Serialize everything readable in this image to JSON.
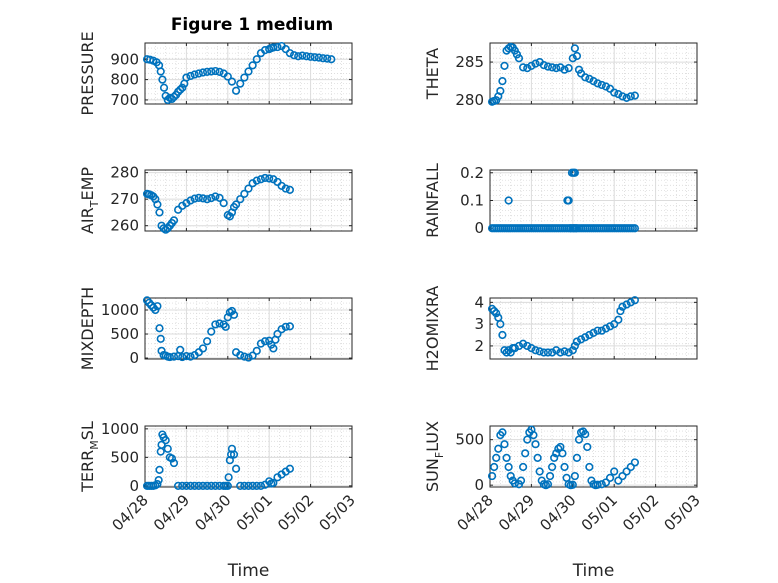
{
  "figure": {
    "title": "Figure 1 medium"
  },
  "chart_data": [
    {
      "type": "scatter",
      "ylabel": "PRESSURE",
      "ylim": [
        680,
        980
      ],
      "yticks": [
        700,
        800,
        900
      ],
      "xlim": [
        0,
        5
      ],
      "grid": true,
      "x": [
        0.05,
        0.12,
        0.2,
        0.28,
        0.34,
        0.38,
        0.42,
        0.46,
        0.5,
        0.55,
        0.6,
        0.65,
        0.7,
        0.75,
        0.8,
        0.85,
        0.9,
        0.95,
        1.0,
        1.1,
        1.2,
        1.3,
        1.4,
        1.5,
        1.6,
        1.7,
        1.8,
        1.9,
        2.0,
        2.1,
        2.2,
        2.3,
        2.4,
        2.5,
        2.6,
        2.7,
        2.8,
        2.9,
        3.0,
        3.05,
        3.1,
        3.2,
        3.3,
        3.4,
        3.5,
        3.6,
        3.7,
        3.8,
        3.9,
        4.0,
        4.1,
        4.2,
        4.3,
        4.4,
        4.5
      ],
      "y": [
        900,
        898,
        893,
        885,
        870,
        840,
        800,
        760,
        720,
        700,
        710,
        705,
        715,
        725,
        740,
        750,
        760,
        780,
        810,
        818,
        825,
        830,
        835,
        838,
        840,
        842,
        838,
        830,
        815,
        790,
        745,
        780,
        810,
        840,
        870,
        900,
        930,
        945,
        950,
        955,
        958,
        960,
        965,
        950,
        930,
        920,
        915,
        918,
        915,
        912,
        910,
        908,
        905,
        903,
        900
      ]
    },
    {
      "type": "scatter",
      "ylabel": "THETA",
      "ylim": [
        279.5,
        287.5
      ],
      "yticks": [
        280,
        285
      ],
      "xlim": [
        0,
        5
      ],
      "grid": true,
      "x": [
        0.05,
        0.1,
        0.15,
        0.2,
        0.25,
        0.3,
        0.35,
        0.4,
        0.45,
        0.5,
        0.55,
        0.6,
        0.65,
        0.7,
        0.8,
        0.9,
        1.0,
        1.1,
        1.2,
        1.3,
        1.4,
        1.5,
        1.6,
        1.7,
        1.8,
        1.9,
        2.0,
        2.05,
        2.1,
        2.15,
        2.2,
        2.3,
        2.4,
        2.5,
        2.6,
        2.7,
        2.8,
        2.9,
        3.0,
        3.1,
        3.2,
        3.3,
        3.4,
        3.5
      ],
      "y": [
        279.8,
        279.9,
        280,
        280.5,
        281.2,
        282.5,
        284.5,
        286.5,
        286.8,
        287,
        286.9,
        286.5,
        286,
        285.5,
        284.3,
        284.2,
        284.5,
        284.8,
        285,
        284.6,
        284.4,
        284.3,
        284.2,
        284.3,
        284,
        284.2,
        285.5,
        286.8,
        285.8,
        284,
        283.5,
        283,
        282.8,
        282.5,
        282.2,
        282,
        281.8,
        281.5,
        281,
        280.8,
        280.5,
        280.3,
        280.5,
        280.6
      ]
    },
    {
      "type": "scatter",
      "ylabel": "AIR_TEMP",
      "ylim": [
        258,
        281
      ],
      "yticks": [
        260,
        270,
        280
      ],
      "xlim": [
        0,
        5
      ],
      "grid": true,
      "x": [
        0.05,
        0.1,
        0.15,
        0.2,
        0.25,
        0.3,
        0.35,
        0.4,
        0.45,
        0.5,
        0.55,
        0.6,
        0.65,
        0.7,
        0.8,
        0.9,
        1.0,
        1.1,
        1.2,
        1.3,
        1.4,
        1.5,
        1.6,
        1.7,
        1.8,
        1.9,
        2.0,
        2.05,
        2.1,
        2.15,
        2.2,
        2.3,
        2.4,
        2.5,
        2.6,
        2.7,
        2.8,
        2.9,
        3.0,
        3.1,
        3.2,
        3.3,
        3.4,
        3.5
      ],
      "y": [
        272,
        271.8,
        271.5,
        271,
        270,
        268,
        265,
        260,
        259,
        258.5,
        259,
        260,
        261,
        262,
        266,
        267.5,
        268.5,
        269.5,
        270.2,
        270.5,
        270.3,
        270,
        270.4,
        271,
        270.5,
        268.5,
        264,
        263.5,
        265,
        267,
        268,
        270,
        272,
        274,
        276,
        277,
        277.5,
        278,
        277.8,
        277.5,
        276.5,
        275,
        274,
        273.5
      ]
    },
    {
      "type": "scatter",
      "ylabel": "RAINFALL",
      "ylim": [
        -0.01,
        0.21
      ],
      "yticks": [
        0,
        0.1,
        0.2
      ],
      "xlim": [
        0,
        5
      ],
      "grid": true,
      "x": [
        0.05,
        0.1,
        0.15,
        0.2,
        0.25,
        0.3,
        0.35,
        0.4,
        0.45,
        0.5,
        0.55,
        0.6,
        0.65,
        0.7,
        0.75,
        0.8,
        0.85,
        0.9,
        0.95,
        1.0,
        1.05,
        1.1,
        1.15,
        1.2,
        1.25,
        1.3,
        1.35,
        1.4,
        1.45,
        1.5,
        1.55,
        1.6,
        1.65,
        1.7,
        1.75,
        1.8,
        1.85,
        1.9,
        1.95,
        2.0,
        2.02,
        2.05,
        2.08,
        2.1,
        2.15,
        2.2,
        2.25,
        2.3,
        2.35,
        2.4,
        2.45,
        2.5,
        2.55,
        2.6,
        2.65,
        2.7,
        2.75,
        2.8,
        2.85,
        2.9,
        2.95,
        3.0,
        3.05,
        3.1,
        3.15,
        3.2,
        3.25,
        3.3,
        3.35,
        3.4,
        3.45,
        3.5,
        0.45,
        1.87,
        1.9,
        1.95,
        1.98,
        2.02,
        2.05
      ],
      "y": [
        0,
        0,
        0,
        0,
        0,
        0,
        0,
        0,
        0,
        0,
        0,
        0,
        0,
        0,
        0,
        0,
        0,
        0,
        0,
        0,
        0,
        0,
        0,
        0,
        0,
        0,
        0,
        0,
        0,
        0,
        0,
        0,
        0,
        0,
        0,
        0,
        0,
        0,
        0,
        0,
        0,
        0,
        0,
        0,
        0,
        0,
        0,
        0,
        0,
        0,
        0,
        0,
        0,
        0,
        0,
        0,
        0,
        0,
        0,
        0,
        0,
        0,
        0,
        0,
        0,
        0,
        0,
        0,
        0,
        0,
        0,
        0,
        0.1,
        0.1,
        0.1,
        0,
        0.2,
        0.2,
        0.2
      ]
    },
    {
      "type": "scatter",
      "ylabel": "MIXDEPTH",
      "ylim": [
        -20,
        1250
      ],
      "yticks": [
        0,
        500,
        1000
      ],
      "xlim": [
        0,
        5
      ],
      "grid": true,
      "x": [
        0.05,
        0.1,
        0.15,
        0.2,
        0.25,
        0.3,
        0.35,
        0.38,
        0.4,
        0.45,
        0.5,
        0.55,
        0.6,
        0.7,
        0.8,
        0.85,
        0.9,
        1.0,
        1.1,
        1.2,
        1.3,
        1.4,
        1.5,
        1.6,
        1.7,
        1.8,
        1.9,
        1.95,
        2.0,
        2.05,
        2.1,
        2.15,
        2.2,
        2.3,
        2.4,
        2.5,
        2.6,
        2.7,
        2.8,
        2.9,
        3.0,
        3.05,
        3.1,
        3.15,
        3.2,
        3.3,
        3.4,
        3.5
      ],
      "y": [
        1200,
        1150,
        1100,
        1050,
        1000,
        1080,
        620,
        400,
        150,
        60,
        50,
        30,
        20,
        30,
        40,
        170,
        20,
        40,
        30,
        60,
        120,
        200,
        350,
        550,
        700,
        720,
        700,
        650,
        850,
        950,
        980,
        900,
        120,
        60,
        30,
        10,
        50,
        150,
        300,
        350,
        360,
        280,
        200,
        380,
        500,
        600,
        650,
        660
      ]
    },
    {
      "type": "scatter",
      "ylabel": "H2OMIXRA",
      "ylim": [
        1.4,
        4.2
      ],
      "yticks": [
        2,
        3,
        4
      ],
      "xlim": [
        0,
        5
      ],
      "grid": true,
      "x": [
        0.05,
        0.1,
        0.15,
        0.2,
        0.25,
        0.3,
        0.35,
        0.4,
        0.45,
        0.5,
        0.55,
        0.6,
        0.7,
        0.8,
        0.9,
        1.0,
        1.1,
        1.2,
        1.3,
        1.4,
        1.5,
        1.6,
        1.7,
        1.8,
        1.9,
        2.0,
        2.05,
        2.1,
        2.2,
        2.3,
        2.4,
        2.5,
        2.6,
        2.7,
        2.8,
        2.9,
        3.0,
        3.1,
        3.15,
        3.2,
        3.3,
        3.4,
        3.5
      ],
      "y": [
        3.7,
        3.6,
        3.5,
        3.3,
        3.0,
        2.5,
        1.8,
        1.7,
        1.8,
        1.7,
        1.9,
        1.9,
        2.0,
        2.1,
        2.0,
        1.9,
        1.8,
        1.75,
        1.7,
        1.7,
        1.7,
        1.8,
        1.7,
        1.75,
        1.7,
        1.8,
        2.0,
        2.2,
        2.3,
        2.4,
        2.5,
        2.6,
        2.7,
        2.7,
        2.8,
        2.9,
        3.0,
        3.2,
        3.6,
        3.8,
        3.9,
        4.0,
        4.1
      ]
    },
    {
      "type": "scatter",
      "ylabel": "TERR_MSL",
      "ylim": [
        -20,
        1050
      ],
      "yticks": [
        0,
        500,
        1000
      ],
      "xlim": [
        0,
        5
      ],
      "grid": true,
      "xticklabels": [
        "04/28",
        "04/29",
        "04/30",
        "05/01",
        "05/02",
        "05/03"
      ],
      "xlabel": "Time",
      "x": [
        0.05,
        0.1,
        0.15,
        0.2,
        0.25,
        0.3,
        0.33,
        0.35,
        0.38,
        0.4,
        0.42,
        0.45,
        0.5,
        0.55,
        0.6,
        0.65,
        0.7,
        0.8,
        0.9,
        1.0,
        1.1,
        1.2,
        1.3,
        1.4,
        1.5,
        1.6,
        1.7,
        1.8,
        1.9,
        1.95,
        2.0,
        2.02,
        2.05,
        2.08,
        2.1,
        2.15,
        2.2,
        2.3,
        2.4,
        2.5,
        2.6,
        2.7,
        2.8,
        2.9,
        3.0,
        3.05,
        3.1,
        3.2,
        3.3,
        3.4,
        3.5
      ],
      "y": [
        0,
        0,
        0,
        0,
        10,
        30,
        100,
        280,
        600,
        720,
        900,
        850,
        800,
        650,
        500,
        480,
        400,
        0,
        0,
        0,
        0,
        0,
        0,
        0,
        0,
        0,
        0,
        0,
        0,
        0,
        0,
        150,
        450,
        550,
        650,
        550,
        300,
        0,
        0,
        0,
        0,
        0,
        0,
        20,
        80,
        40,
        50,
        150,
        200,
        250,
        300
      ]
    },
    {
      "type": "scatter",
      "ylabel": "SUN_FLUX",
      "ylim": [
        -20,
        650
      ],
      "yticks": [
        0,
        500
      ],
      "xlim": [
        0,
        5
      ],
      "grid": true,
      "xticklabels": [
        "04/28",
        "04/29",
        "04/30",
        "05/01",
        "05/02",
        "05/03"
      ],
      "xlabel": "Time",
      "x": [
        0.05,
        0.1,
        0.15,
        0.2,
        0.25,
        0.3,
        0.35,
        0.4,
        0.45,
        0.5,
        0.55,
        0.6,
        0.7,
        0.75,
        0.8,
        0.85,
        0.9,
        0.95,
        1.0,
        1.05,
        1.1,
        1.15,
        1.2,
        1.25,
        1.3,
        1.35,
        1.4,
        1.45,
        1.5,
        1.55,
        1.6,
        1.65,
        1.7,
        1.75,
        1.8,
        1.85,
        1.9,
        1.95,
        2.0,
        2.05,
        2.1,
        2.15,
        2.2,
        2.25,
        2.3,
        2.35,
        2.4,
        2.45,
        2.5,
        2.55,
        2.6,
        2.7,
        2.8,
        2.9,
        3.0,
        3.1,
        3.2,
        3.3,
        3.4,
        3.5
      ],
      "y": [
        100,
        200,
        300,
        400,
        550,
        580,
        450,
        300,
        200,
        100,
        50,
        20,
        10,
        50,
        200,
        350,
        500,
        580,
        610,
        550,
        450,
        300,
        150,
        50,
        10,
        0,
        10,
        100,
        200,
        300,
        350,
        400,
        420,
        350,
        200,
        80,
        10,
        0,
        5,
        100,
        300,
        500,
        580,
        590,
        560,
        420,
        200,
        50,
        10,
        0,
        5,
        10,
        30,
        80,
        150,
        50,
        100,
        150,
        200,
        250
      ]
    }
  ]
}
